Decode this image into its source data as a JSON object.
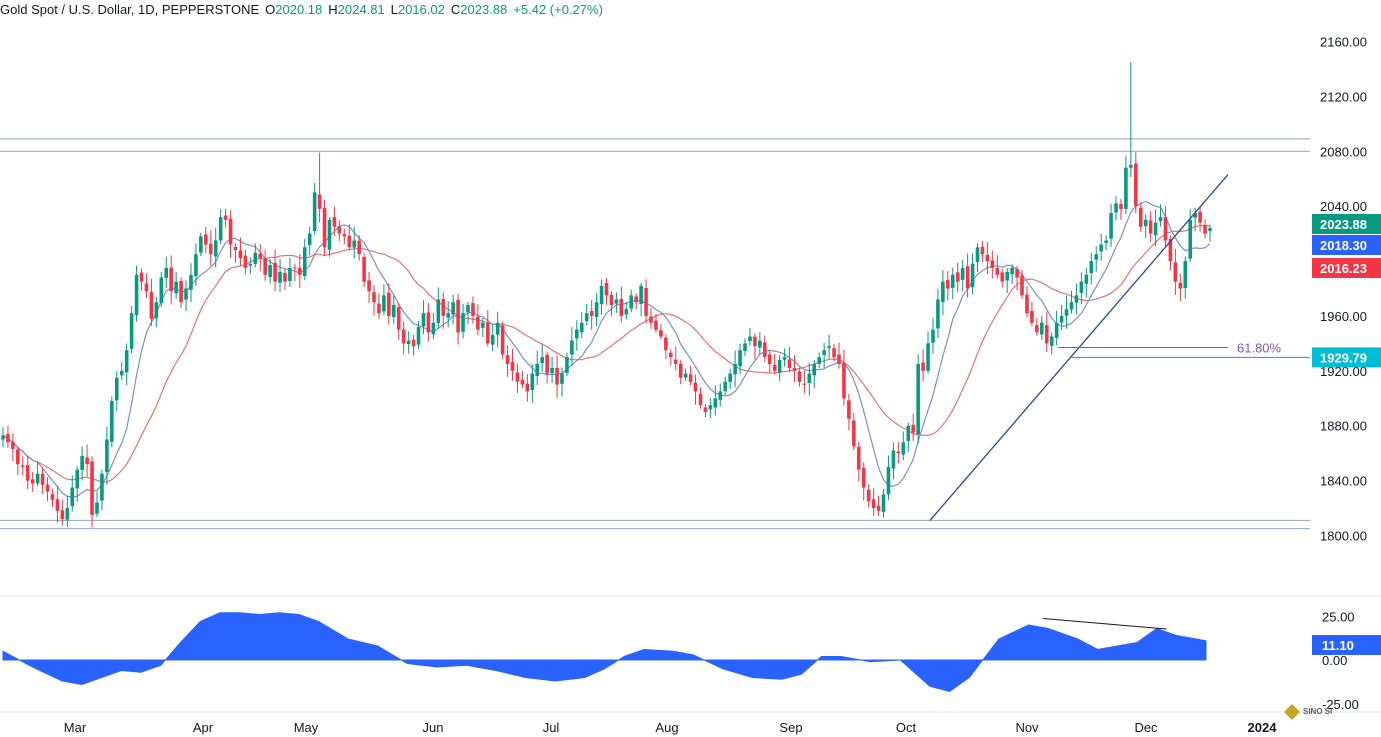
{
  "header": {
    "title": "Gold Spot / U.S. Dollar, 1D, PEPPERSTONE",
    "o_label": "O",
    "o_value": "2020.18",
    "h_label": "H",
    "h_value": "2024.81",
    "l_label": "L",
    "l_value": "2016.02",
    "c_label": "C",
    "c_value": "2023.88",
    "change": "+5.42 (+0.27%)"
  },
  "colors": {
    "up": "#089981",
    "down": "#f23645",
    "ma_fast": "#7b8fc8",
    "ma_slow": "#e57373",
    "hline": "#90a4c8",
    "trend": "#2a4a8a",
    "oscillator": "#2962ff",
    "badge_close": "#089981",
    "badge_ma_fast": "#2962ff",
    "badge_ma_slow": "#f23645",
    "badge_fib": "#00bcd4",
    "fib": "#7e57c2"
  },
  "watermark": {
    "text": "SINO SOUND"
  },
  "chart_data": {
    "type": "candlestick",
    "title": "Gold Spot / U.S. Dollar, 1D, PEPPERSTONE",
    "price_axis": {
      "ticks": [
        "2160.00",
        "2120.00",
        "2080.00",
        "2040.00",
        "1960.00",
        "1920.00",
        "1880.00",
        "1840.00",
        "1800.00"
      ],
      "ylim": [
        1788,
        2172
      ]
    },
    "time_axis": {
      "labels": [
        "Mar",
        "Apr",
        "May",
        "Jun",
        "Jul",
        "Aug",
        "Sep",
        "Oct",
        "Nov",
        "Dec",
        "2024"
      ]
    },
    "badges": {
      "close": "2023.88",
      "ma_fast": "2018.30",
      "ma_slow": "2016.23",
      "fib": "1929.79"
    },
    "horizontal_levels": [
      2080,
      2089,
      1811,
      1805
    ],
    "fib_label": "61.80%",
    "fib_level": 1937,
    "support_level": 1929.79,
    "trendline": {
      "from": {
        "month": "Oct",
        "price": 1811
      },
      "to": {
        "month": "Dec",
        "price": 2063
      }
    },
    "close_points": [
      [
        0,
        1873
      ],
      [
        1,
        1868
      ],
      [
        2,
        1863
      ],
      [
        3,
        1852
      ],
      [
        4,
        1850
      ],
      [
        5,
        1840
      ],
      [
        6,
        1838
      ],
      [
        7,
        1845
      ],
      [
        8,
        1837
      ],
      [
        9,
        1832
      ],
      [
        10,
        1826
      ],
      [
        11,
        1818
      ],
      [
        12,
        1812
      ],
      [
        13,
        1820
      ],
      [
        14,
        1835
      ],
      [
        15,
        1848
      ],
      [
        16,
        1858
      ],
      [
        17,
        1852
      ],
      [
        18,
        1815
      ],
      [
        19,
        1824
      ],
      [
        20,
        1845
      ],
      [
        21,
        1870
      ],
      [
        22,
        1898
      ],
      [
        23,
        1915
      ],
      [
        24,
        1920
      ],
      [
        25,
        1935
      ],
      [
        26,
        1962
      ],
      [
        27,
        1990
      ],
      [
        28,
        1985
      ],
      [
        29,
        1978
      ],
      [
        30,
        1958
      ],
      [
        31,
        1970
      ],
      [
        32,
        1988
      ],
      [
        33,
        1995
      ],
      [
        34,
        1978
      ],
      [
        35,
        1985
      ],
      [
        36,
        1970
      ],
      [
        37,
        1980
      ],
      [
        38,
        1990
      ],
      [
        39,
        2005
      ],
      [
        40,
        2018
      ],
      [
        41,
        2012
      ],
      [
        42,
        2005
      ],
      [
        43,
        2015
      ],
      [
        44,
        2032
      ],
      [
        45,
        2030
      ],
      [
        46,
        2012
      ],
      [
        47,
        2008
      ],
      [
        48,
        2002
      ],
      [
        49,
        1995
      ],
      [
        50,
        1998
      ],
      [
        51,
        2006
      ],
      [
        52,
        2002
      ],
      [
        53,
        1990
      ],
      [
        54,
        1997
      ],
      [
        55,
        1985
      ],
      [
        56,
        1992
      ],
      [
        57,
        1985
      ],
      [
        58,
        1995
      ],
      [
        59,
        1995
      ],
      [
        60,
        1990
      ],
      [
        61,
        2010
      ],
      [
        62,
        2020
      ],
      [
        63,
        2050
      ],
      [
        64,
        2038
      ],
      [
        65,
        2010
      ],
      [
        66,
        2030
      ],
      [
        67,
        2025
      ],
      [
        68,
        2020
      ],
      [
        69,
        2018
      ],
      [
        70,
        2010
      ],
      [
        71,
        2015
      ],
      [
        72,
        2005
      ],
      [
        73,
        1985
      ],
      [
        74,
        1978
      ],
      [
        75,
        1970
      ],
      [
        76,
        1962
      ],
      [
        77,
        1975
      ],
      [
        78,
        1960
      ],
      [
        79,
        1968
      ],
      [
        80,
        1950
      ],
      [
        81,
        1940
      ],
      [
        82,
        1942
      ],
      [
        83,
        1938
      ],
      [
        84,
        1952
      ],
      [
        85,
        1962
      ],
      [
        86,
        1948
      ],
      [
        87,
        1955
      ],
      [
        88,
        1972
      ],
      [
        89,
        1960
      ],
      [
        90,
        1962
      ],
      [
        91,
        1970
      ],
      [
        92,
        1948
      ],
      [
        93,
        1962
      ],
      [
        94,
        1968
      ],
      [
        95,
        1960
      ],
      [
        96,
        1950
      ],
      [
        97,
        1955
      ],
      [
        98,
        1940
      ],
      [
        99,
        1946
      ],
      [
        100,
        1955
      ],
      [
        101,
        1932
      ],
      [
        102,
        1925
      ],
      [
        103,
        1920
      ],
      [
        104,
        1912
      ],
      [
        105,
        1910
      ],
      [
        106,
        1905
      ],
      [
        107,
        1918
      ],
      [
        108,
        1925
      ],
      [
        109,
        1930
      ],
      [
        110,
        1918
      ],
      [
        111,
        1922
      ],
      [
        112,
        1910
      ],
      [
        113,
        1918
      ],
      [
        114,
        1930
      ],
      [
        115,
        1942
      ],
      [
        116,
        1950
      ],
      [
        117,
        1955
      ],
      [
        118,
        1962
      ],
      [
        119,
        1960
      ],
      [
        120,
        1970
      ],
      [
        121,
        1982
      ],
      [
        122,
        1975
      ],
      [
        123,
        1968
      ],
      [
        124,
        1972
      ],
      [
        125,
        1960
      ],
      [
        126,
        1965
      ],
      [
        127,
        1975
      ],
      [
        128,
        1970
      ],
      [
        129,
        1982
      ],
      [
        130,
        1960
      ],
      [
        131,
        1955
      ],
      [
        132,
        1950
      ],
      [
        133,
        1945
      ],
      [
        134,
        1935
      ],
      [
        135,
        1930
      ],
      [
        136,
        1925
      ],
      [
        137,
        1915
      ],
      [
        138,
        1918
      ],
      [
        139,
        1912
      ],
      [
        140,
        1905
      ],
      [
        141,
        1895
      ],
      [
        142,
        1890
      ],
      [
        143,
        1895
      ],
      [
        144,
        1900
      ],
      [
        145,
        1905
      ],
      [
        146,
        1912
      ],
      [
        147,
        1918
      ],
      [
        148,
        1925
      ],
      [
        149,
        1935
      ],
      [
        150,
        1940
      ],
      [
        151,
        1945
      ],
      [
        152,
        1938
      ],
      [
        153,
        1942
      ],
      [
        154,
        1930
      ],
      [
        155,
        1925
      ],
      [
        156,
        1920
      ],
      [
        157,
        1928
      ],
      [
        158,
        1930
      ],
      [
        159,
        1922
      ],
      [
        160,
        1920
      ],
      [
        161,
        1912
      ],
      [
        162,
        1910
      ],
      [
        163,
        1918
      ],
      [
        164,
        1925
      ],
      [
        165,
        1930
      ],
      [
        166,
        1935
      ],
      [
        167,
        1938
      ],
      [
        168,
        1930
      ],
      [
        169,
        1925
      ],
      [
        170,
        1900
      ],
      [
        171,
        1885
      ],
      [
        172,
        1865
      ],
      [
        173,
        1848
      ],
      [
        174,
        1835
      ],
      [
        175,
        1825
      ],
      [
        176,
        1820
      ],
      [
        177,
        1818
      ],
      [
        178,
        1830
      ],
      [
        179,
        1850
      ],
      [
        180,
        1862
      ],
      [
        181,
        1860
      ],
      [
        182,
        1868
      ],
      [
        183,
        1880
      ],
      [
        184,
        1875
      ],
      [
        185,
        1925
      ],
      [
        186,
        1920
      ],
      [
        187,
        1940
      ],
      [
        188,
        1950
      ],
      [
        189,
        1972
      ],
      [
        190,
        1985
      ],
      [
        191,
        1980
      ],
      [
        192,
        1990
      ],
      [
        193,
        1985
      ],
      [
        194,
        1995
      ],
      [
        195,
        1980
      ],
      [
        196,
        1998
      ],
      [
        197,
        2010
      ],
      [
        198,
        2005
      ],
      [
        199,
        2000
      ],
      [
        200,
        1995
      ],
      [
        201,
        1990
      ],
      [
        202,
        1985
      ],
      [
        203,
        1992
      ],
      [
        204,
        1995
      ],
      [
        205,
        1988
      ],
      [
        206,
        1975
      ],
      [
        207,
        1962
      ],
      [
        208,
        1955
      ],
      [
        209,
        1948
      ],
      [
        210,
        1955
      ],
      [
        211,
        1940
      ],
      [
        212,
        1945
      ],
      [
        213,
        1955
      ],
      [
        214,
        1960
      ],
      [
        215,
        1965
      ],
      [
        216,
        1970
      ],
      [
        217,
        1975
      ],
      [
        218,
        1985
      ],
      [
        219,
        1990
      ],
      [
        220,
        2000
      ],
      [
        221,
        2005
      ],
      [
        222,
        2012
      ],
      [
        223,
        2015
      ],
      [
        224,
        2035
      ],
      [
        225,
        2042
      ],
      [
        226,
        2038
      ],
      [
        227,
        2068
      ],
      [
        228,
        2070
      ],
      [
        229,
        2040
      ],
      [
        230,
        2025
      ],
      [
        231,
        2030
      ],
      [
        232,
        2020
      ],
      [
        233,
        2028
      ],
      [
        234,
        2032
      ],
      [
        235,
        2015
      ],
      [
        236,
        2000
      ],
      [
        237,
        1985
      ],
      [
        238,
        1980
      ],
      [
        239,
        2000
      ],
      [
        240,
        2030
      ],
      [
        241,
        2035
      ],
      [
        242,
        2028
      ],
      [
        243,
        2020
      ],
      [
        244,
        2024
      ]
    ],
    "oscillator": {
      "axis_ticks": [
        "25.00",
        "0.00",
        "-25.00"
      ],
      "ylim": [
        -32,
        32
      ],
      "current_value": "11.10",
      "points": [
        [
          0,
          5
        ],
        [
          6,
          -4
        ],
        [
          12,
          -12
        ],
        [
          16,
          -14
        ],
        [
          20,
          -10
        ],
        [
          24,
          -6
        ],
        [
          28,
          -7
        ],
        [
          32,
          -3
        ],
        [
          36,
          10
        ],
        [
          40,
          22
        ],
        [
          44,
          27
        ],
        [
          48,
          27
        ],
        [
          52,
          26
        ],
        [
          56,
          27
        ],
        [
          60,
          26
        ],
        [
          64,
          22
        ],
        [
          70,
          12
        ],
        [
          76,
          8
        ],
        [
          82,
          -2
        ],
        [
          88,
          -4
        ],
        [
          94,
          -3
        ],
        [
          100,
          -6
        ],
        [
          106,
          -10
        ],
        [
          112,
          -12
        ],
        [
          118,
          -10
        ],
        [
          122,
          -5
        ],
        [
          126,
          2
        ],
        [
          130,
          6
        ],
        [
          136,
          5
        ],
        [
          140,
          3
        ],
        [
          146,
          -5
        ],
        [
          152,
          -10
        ],
        [
          158,
          -11
        ],
        [
          162,
          -8
        ],
        [
          166,
          2
        ],
        [
          170,
          2
        ],
        [
          176,
          -1
        ],
        [
          182,
          0
        ],
        [
          188,
          -15
        ],
        [
          192,
          -18
        ],
        [
          196,
          -10
        ],
        [
          202,
          12
        ],
        [
          208,
          20
        ],
        [
          212,
          18
        ],
        [
          218,
          12
        ],
        [
          222,
          6
        ],
        [
          226,
          8
        ],
        [
          230,
          10
        ],
        [
          234,
          18
        ],
        [
          238,
          14
        ],
        [
          242,
          12
        ],
        [
          244,
          11
        ]
      ],
      "divergence_line": {
        "from": [
          211,
          22
        ],
        "to": [
          236,
          16
        ]
      }
    }
  }
}
